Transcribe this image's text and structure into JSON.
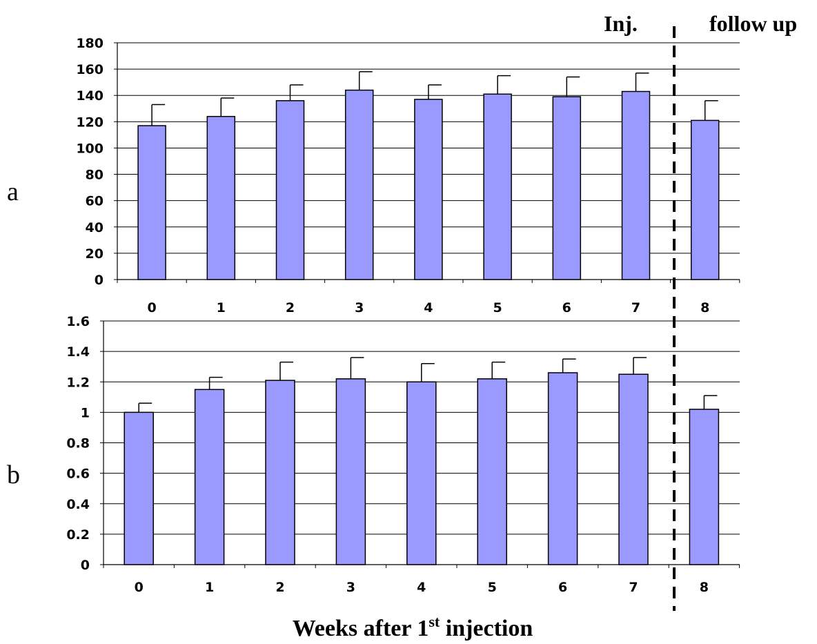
{
  "header": {
    "left_label": "Inj.",
    "right_label": "follow up"
  },
  "x_axis_title": {
    "prefix": "Weeks after 1",
    "superscript": "st",
    "suffix": " injection"
  },
  "colors": {
    "bar_fill": "#9999ff",
    "bar_stroke": "#000000",
    "grid": "#000000"
  },
  "chart_data": [
    {
      "type": "bar",
      "panel_label": "a",
      "categories": [
        "0",
        "1",
        "2",
        "3",
        "4",
        "5",
        "6",
        "7",
        "8"
      ],
      "values": [
        117,
        124,
        136,
        144,
        137,
        141,
        139,
        143,
        121
      ],
      "errors": [
        16,
        14,
        12,
        14,
        11,
        14,
        15,
        14,
        15
      ],
      "ylim": [
        0,
        180
      ],
      "yticks": [
        "0",
        "20",
        "40",
        "60",
        "80",
        "100",
        "120",
        "140",
        "160",
        "180"
      ],
      "grid": true
    },
    {
      "type": "bar",
      "panel_label": "b",
      "categories": [
        "0",
        "1",
        "2",
        "3",
        "4",
        "5",
        "6",
        "7",
        "8"
      ],
      "values": [
        1.0,
        1.15,
        1.21,
        1.22,
        1.2,
        1.22,
        1.26,
        1.25,
        1.02
      ],
      "errors": [
        0.06,
        0.08,
        0.12,
        0.14,
        0.12,
        0.11,
        0.09,
        0.11,
        0.09
      ],
      "ylim": [
        0,
        1.6
      ],
      "yticks": [
        "0",
        "0.2",
        "0.4",
        "0.6",
        "0.8",
        "1",
        "1.2",
        "1.4",
        "1.6"
      ],
      "grid": true
    }
  ]
}
